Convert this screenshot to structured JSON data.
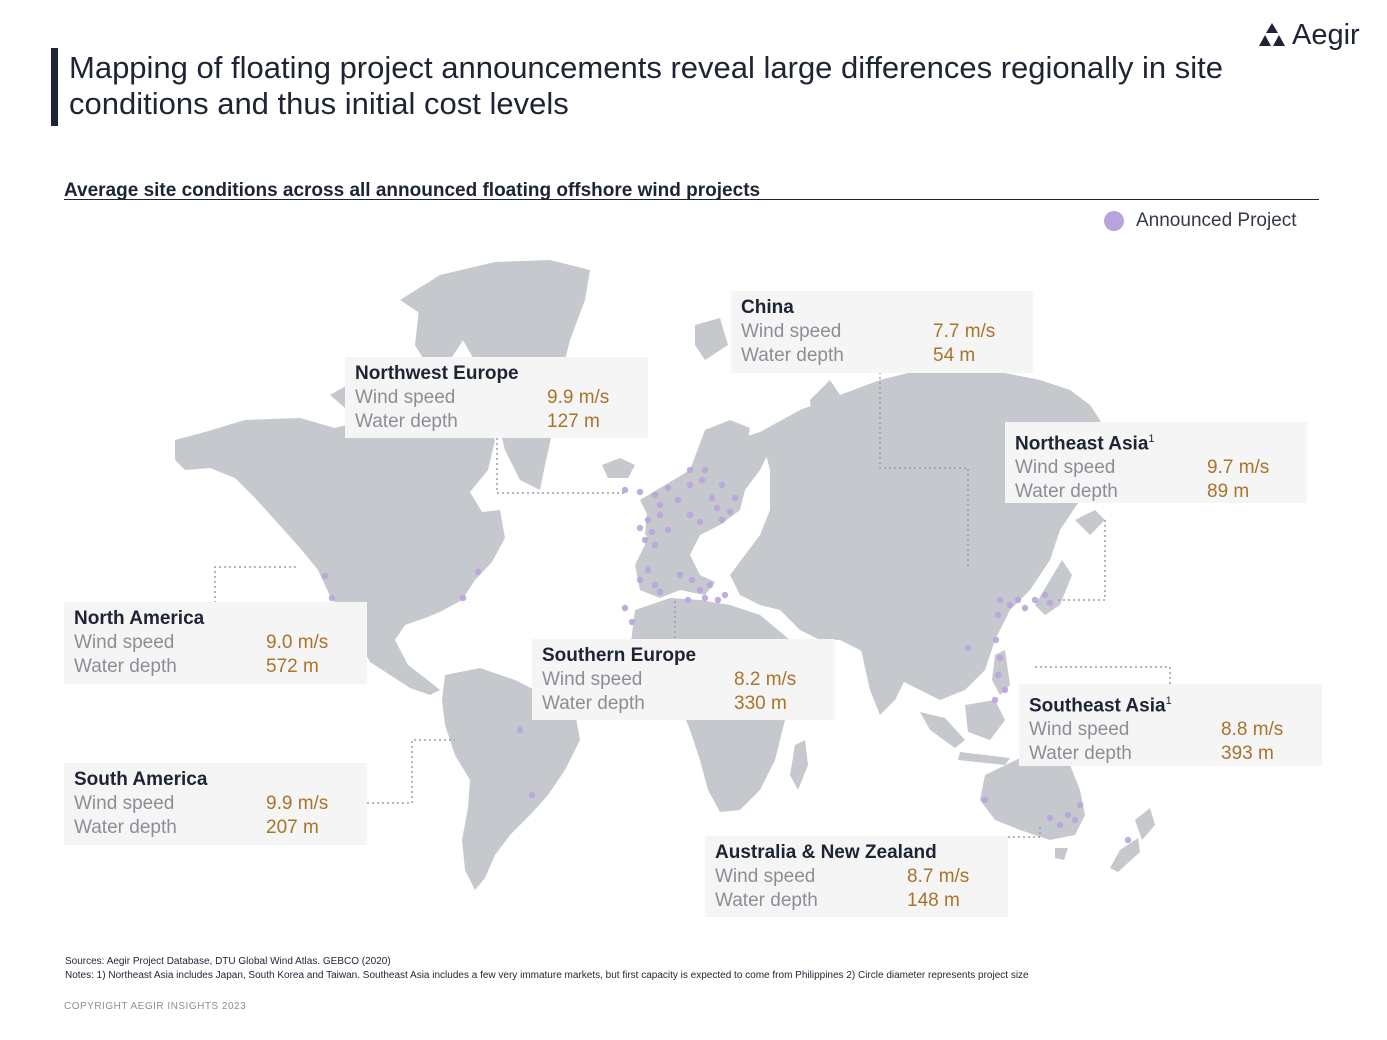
{
  "brand": {
    "name": "Aegir",
    "logo_icon": "aegir-triangles-logo"
  },
  "title": "Mapping of floating project announcements reveal large differences regionally in site conditions and thus initial cost levels",
  "subtitle": "Average site conditions across all announced floating offshore wind projects",
  "legend": {
    "label": "Announced Project",
    "color": "#b9a3dc"
  },
  "colors": {
    "land": "#c5c8cc",
    "accent": "#a9742a",
    "marker": "#b9a3dc",
    "panel": "#f5f5f5"
  },
  "regions": [
    {
      "id": "china",
      "name": "China",
      "sup": "",
      "wind_label": "Wind speed",
      "wind": "7.7 m/s",
      "depth_label": "Water depth",
      "depth": "54 m"
    },
    {
      "id": "nw-europe",
      "name": "Northwest Europe",
      "sup": "",
      "wind_label": "Wind speed",
      "wind": "9.9 m/s",
      "depth_label": "Water depth",
      "depth": "127 m"
    },
    {
      "id": "ne-asia",
      "name": "Northeast Asia",
      "sup": "1",
      "wind_label": "Wind speed",
      "wind": "9.7 m/s",
      "depth_label": "Water depth",
      "depth": "89 m"
    },
    {
      "id": "north-america",
      "name": "North America",
      "sup": "",
      "wind_label": "Wind speed",
      "wind": "9.0 m/s",
      "depth_label": "Water depth",
      "depth": "572 m"
    },
    {
      "id": "s-europe",
      "name": "Southern Europe",
      "sup": "",
      "wind_label": "Wind speed",
      "wind": "8.2 m/s",
      "depth_label": "Water depth",
      "depth": "330 m"
    },
    {
      "id": "se-asia",
      "name": "Southeast Asia",
      "sup": "1",
      "wind_label": "Wind speed",
      "wind": "8.8 m/s",
      "depth_label": "Water depth",
      "depth": "393 m"
    },
    {
      "id": "south-america",
      "name": "South America",
      "sup": "",
      "wind_label": "Wind speed",
      "wind": "9.9 m/s",
      "depth_label": "Water depth",
      "depth": "207 m"
    },
    {
      "id": "aus-nz",
      "name": "Australia & New Zealand",
      "sup": "",
      "wind_label": "Wind speed",
      "wind": "8.7 m/s",
      "depth_label": "Water depth",
      "depth": "148 m"
    }
  ],
  "sources": "Sources: Aegir Project Database, DTU Global Wind Atlas. GEBCO (2020)",
  "notes": "Notes: 1) Northeast Asia includes Japan, South Korea and Taiwan. Southeast Asia includes a few very immature markets, but first capacity is expected to come from Philippines 2) Circle diameter represents project size",
  "copyright": "COPYRIGHT  AEGIR  INSIGHTS  2023"
}
